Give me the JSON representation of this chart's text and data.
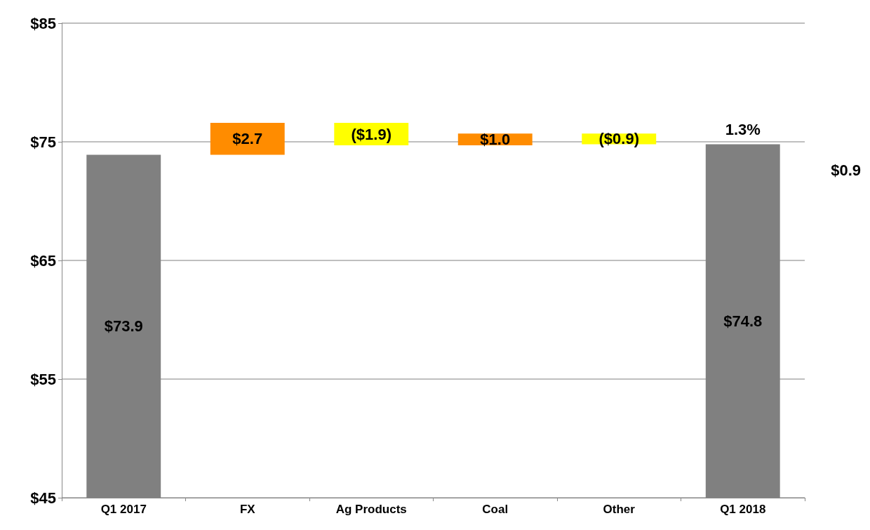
{
  "chart_data": {
    "type": "bar",
    "categories": [
      "Q1 2017",
      "FX",
      "Ag Products",
      "Coal",
      "Other",
      "Q1 2018"
    ],
    "values": [
      73.9,
      2.7,
      -1.9,
      1.0,
      -0.9,
      74.8
    ],
    "base": [
      null,
      73.9,
      76.6,
      74.7,
      75.7,
      null
    ],
    "colors": [
      "#808080",
      "#ff8c00",
      "#ffff00",
      "#ff8c00",
      "#ffff00",
      "#808080"
    ],
    "value_labels": [
      "$73.9",
      "$2.7",
      "($1.9)",
      "$1.0",
      "($0.9)",
      "$74.8"
    ],
    "ylim": [
      45,
      85
    ],
    "yticks": [
      {
        "value": 45,
        "label": "$45"
      },
      {
        "value": 55,
        "label": "$55"
      },
      {
        "value": 65,
        "label": "$65"
      },
      {
        "value": 75,
        "label": "$75"
      },
      {
        "value": 85,
        "label": "$85"
      }
    ],
    "grid": "y",
    "annotations": [
      {
        "text": "1.3%",
        "x": "Q1 2018",
        "y": 74.8
      },
      "$0.9"
    ]
  }
}
